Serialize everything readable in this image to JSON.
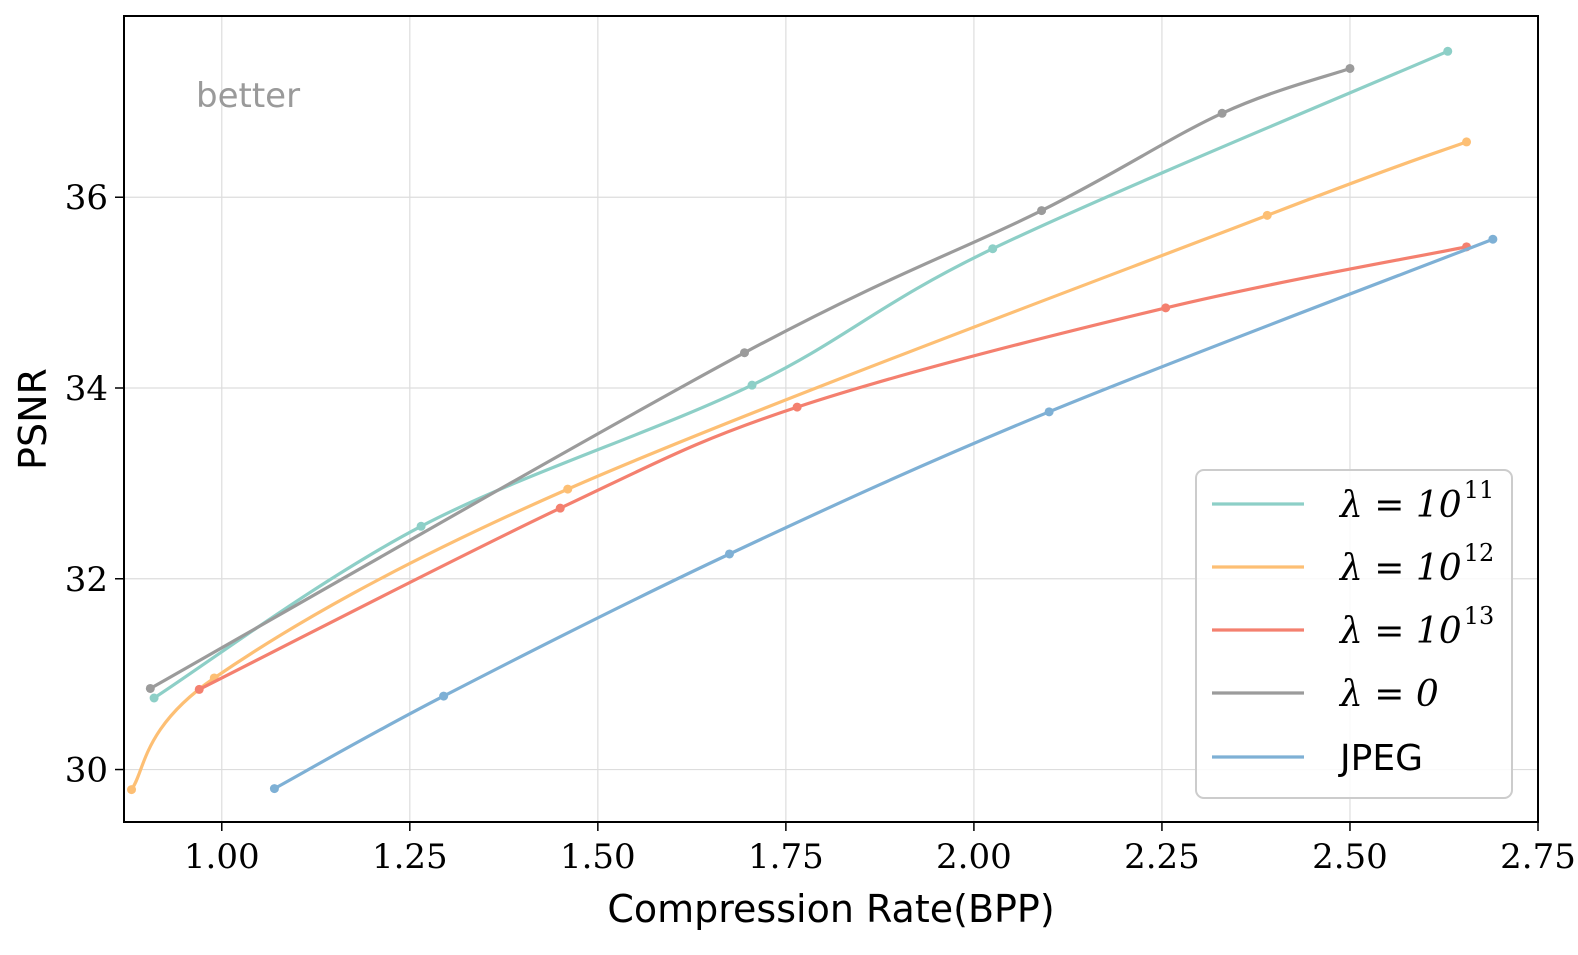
{
  "chart_data": {
    "type": "line",
    "title": "",
    "xlabel": "Compression Rate(BPP)",
    "ylabel": "PSNR",
    "xlim": [
      0.87,
      2.75
    ],
    "ylim": [
      29.45,
      37.9
    ],
    "grid": true,
    "legend_position": "bottom-right",
    "xticks": [
      1.0,
      1.25,
      1.5,
      1.75,
      2.0,
      2.25,
      2.5,
      2.75
    ],
    "xtick_labels": [
      "1.00",
      "1.25",
      "1.50",
      "1.75",
      "2.00",
      "2.25",
      "2.50",
      "2.75"
    ],
    "yticks": [
      30,
      32,
      34,
      36
    ],
    "ytick_labels": [
      "30",
      "32",
      "34",
      "36"
    ],
    "annotation": "better",
    "series": [
      {
        "name": "λ = 10^11",
        "legend_label": "λ = 10",
        "legend_exp": "11",
        "color": "#8dcfc7",
        "x": [
          0.91,
          1.265,
          1.705,
          2.025,
          2.63
        ],
        "y": [
          30.75,
          32.55,
          34.03,
          35.46,
          37.53
        ]
      },
      {
        "name": "λ = 10^12",
        "legend_label": "λ = 10",
        "legend_exp": "12",
        "color": "#fdbf74",
        "x": [
          0.88,
          0.99,
          1.46,
          2.39,
          2.655
        ],
        "y": [
          29.79,
          30.96,
          32.94,
          35.81,
          36.58
        ]
      },
      {
        "name": "λ = 10^13",
        "legend_label": "λ = 10",
        "legend_exp": "13",
        "color": "#f4806f",
        "x": [
          0.97,
          1.45,
          1.765,
          2.255,
          2.655
        ],
        "y": [
          30.84,
          32.74,
          33.8,
          34.84,
          35.48
        ]
      },
      {
        "name": "λ = 0",
        "legend_label": "λ = 0",
        "legend_exp": "",
        "color": "#9b9b9b",
        "x": [
          0.905,
          1.695,
          2.09,
          2.33,
          2.5
        ],
        "y": [
          30.85,
          34.37,
          35.86,
          36.88,
          37.35
        ]
      },
      {
        "name": "JPEG",
        "legend_label": "JPEG",
        "legend_exp": "",
        "color": "#7eb0d5",
        "x": [
          1.07,
          1.295,
          1.675,
          2.1,
          2.69
        ],
        "y": [
          29.8,
          30.77,
          32.26,
          33.75,
          35.56
        ]
      }
    ]
  }
}
